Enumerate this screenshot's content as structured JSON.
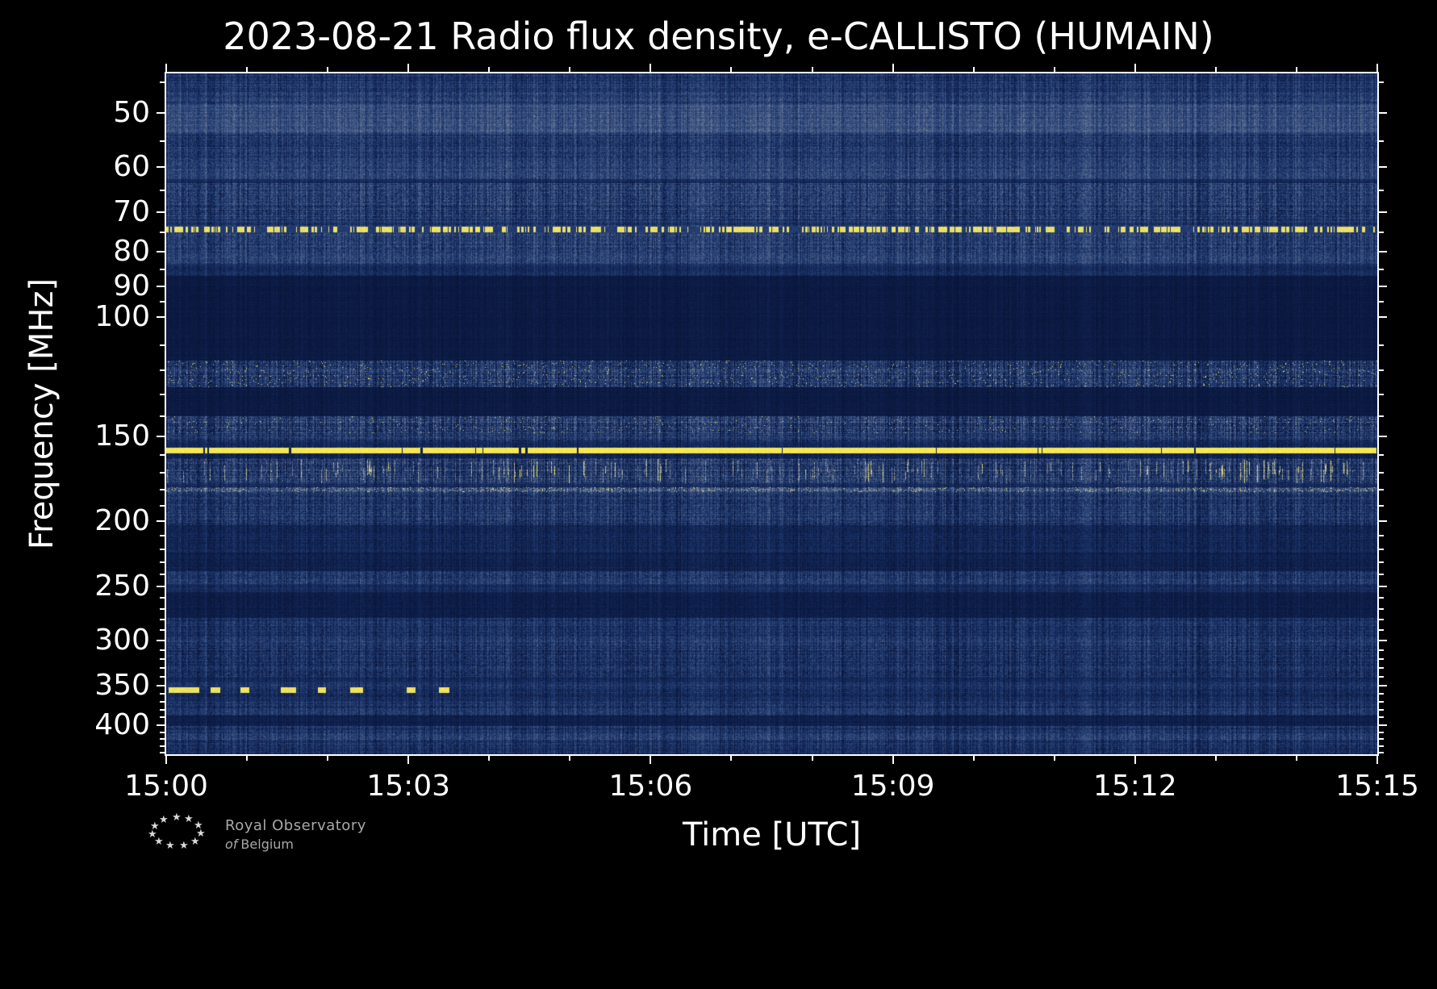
{
  "logo": {
    "star": "★",
    "line1": "Royal Observatory",
    "line2_of": "of",
    "line2_rest": "Belgium"
  },
  "chart_data": {
    "type": "heatmap",
    "title": "2023-08-21 Radio flux density, e-CALLISTO (HUMAIN)",
    "xlabel": "Time [UTC]",
    "ylabel": "Frequency [MHz]",
    "x_range_minutes": [
      0,
      15
    ],
    "x_ticks": [
      {
        "label": "15:00",
        "minute": 0
      },
      {
        "label": "15:03",
        "minute": 3
      },
      {
        "label": "15:06",
        "minute": 6
      },
      {
        "label": "15:09",
        "minute": 9
      },
      {
        "label": "15:12",
        "minute": 12
      },
      {
        "label": "15:15",
        "minute": 15
      }
    ],
    "x_minor_tick_minutes": [
      1,
      2,
      4,
      5,
      7,
      8,
      10,
      11,
      13,
      14
    ],
    "freq_range_mhz": [
      43.7,
      442
    ],
    "freq_scale": "log",
    "y_ticks_mhz": [
      50,
      60,
      70,
      80,
      90,
      100,
      150,
      200,
      250,
      300,
      350,
      400
    ],
    "y_minor_ticks_mhz": [
      45,
      55,
      65,
      75,
      85,
      95,
      110,
      120,
      130,
      140,
      160,
      170,
      180,
      190,
      210,
      220,
      230,
      240,
      260,
      270,
      280,
      290,
      310,
      320,
      330,
      340,
      360,
      370,
      380,
      390,
      410,
      420,
      430,
      440
    ],
    "colormap_stops": [
      [
        0.0,
        [
          6,
          16,
          45
        ]
      ],
      [
        0.12,
        [
          13,
          29,
          72
        ]
      ],
      [
        0.3,
        [
          32,
          58,
          112
        ]
      ],
      [
        0.5,
        [
          80,
          100,
          140
        ]
      ],
      [
        0.68,
        [
          152,
          158,
          162
        ]
      ],
      [
        0.82,
        [
          216,
          206,
          138
        ]
      ],
      [
        1.0,
        [
          255,
          240,
          70
        ]
      ]
    ],
    "bands": [
      {
        "f": [
          43.7,
          46.5
        ],
        "base": 0.27,
        "noise": 0.1
      },
      {
        "f": [
          46.5,
          48.5
        ],
        "base": 0.32,
        "noise": 0.11
      },
      {
        "f": [
          48.5,
          53.5
        ],
        "base": 0.4,
        "noise": 0.1
      },
      {
        "f": [
          53.5,
          59.5
        ],
        "base": 0.29,
        "noise": 0.11
      },
      {
        "f": [
          59.5,
          62.5
        ],
        "base": 0.35,
        "noise": 0.11
      },
      {
        "f": [
          62.5,
          63.5
        ],
        "base": 0.2,
        "noise": 0.06
      },
      {
        "f": [
          63.5,
          71.5
        ],
        "base": 0.3,
        "noise": 0.13
      },
      {
        "f": [
          71.5,
          73.3
        ],
        "base": 0.26,
        "noise": 0.09
      },
      {
        "f": [
          73.3,
          75.2
        ],
        "base": 0.3,
        "noise": 0.1
      },
      {
        "f": [
          75.2,
          80.0
        ],
        "base": 0.3,
        "noise": 0.12
      },
      {
        "f": [
          80.0,
          83.5
        ],
        "base": 0.33,
        "noise": 0.11
      },
      {
        "f": [
          83.5,
          87.0
        ],
        "base": 0.22,
        "noise": 0.07
      },
      {
        "f": [
          87.0,
          116.0
        ],
        "base": 0.1,
        "noise": 0.03
      },
      {
        "f": [
          116.0,
          127.0
        ],
        "base": 0.29,
        "noise": 0.15,
        "speckle": 0.02
      },
      {
        "f": [
          127.0,
          140.0
        ],
        "base": 0.1,
        "noise": 0.03
      },
      {
        "f": [
          140.0,
          148.5
        ],
        "base": 0.31,
        "noise": 0.16,
        "speckle": 0.012
      },
      {
        "f": [
          148.5,
          152.5
        ],
        "base": 0.27,
        "noise": 0.12
      },
      {
        "f": [
          152.5,
          155.5
        ],
        "base": 0.19,
        "noise": 0.07
      },
      {
        "f": [
          155.5,
          159.0
        ],
        "base": 0.28,
        "noise": 0.1
      },
      {
        "f": [
          159.0,
          161.5
        ],
        "base": 0.16,
        "noise": 0.06
      },
      {
        "f": [
          161.5,
          176.0
        ],
        "base": 0.3,
        "noise": 0.15
      },
      {
        "f": [
          176.0,
          178.5
        ],
        "base": 0.21,
        "noise": 0.08
      },
      {
        "f": [
          178.5,
          181.5
        ],
        "base": 0.38,
        "noise": 0.16,
        "speckle": 0.07
      },
      {
        "f": [
          181.5,
          203.0
        ],
        "base": 0.27,
        "noise": 0.12
      },
      {
        "f": [
          203.0,
          223.0
        ],
        "base": 0.18,
        "noise": 0.07
      },
      {
        "f": [
          223.0,
          237.0
        ],
        "base": 0.14,
        "noise": 0.05
      },
      {
        "f": [
          237.0,
          248.0
        ],
        "base": 0.29,
        "noise": 0.11
      },
      {
        "f": [
          248.0,
          255.0
        ],
        "base": 0.21,
        "noise": 0.07
      },
      {
        "f": [
          255.0,
          278.0
        ],
        "base": 0.12,
        "noise": 0.04
      },
      {
        "f": [
          278.0,
          298.0
        ],
        "base": 0.24,
        "noise": 0.1
      },
      {
        "f": [
          298.0,
          310.0
        ],
        "base": 0.28,
        "noise": 0.11
      },
      {
        "f": [
          310.0,
          340.0
        ],
        "base": 0.24,
        "noise": 0.11
      },
      {
        "f": [
          340.0,
          346.0
        ],
        "base": 0.2,
        "noise": 0.07
      },
      {
        "f": [
          346.0,
          361.0
        ],
        "base": 0.24,
        "noise": 0.09
      },
      {
        "f": [
          361.0,
          370.0
        ],
        "base": 0.21,
        "noise": 0.08
      },
      {
        "f": [
          370.0,
          388.0
        ],
        "base": 0.26,
        "noise": 0.1
      },
      {
        "f": [
          388.0,
          402.0
        ],
        "base": 0.13,
        "noise": 0.04
      },
      {
        "f": [
          402.0,
          412.0
        ],
        "base": 0.26,
        "noise": 0.1
      },
      {
        "f": [
          412.0,
          422.0
        ],
        "base": 0.3,
        "noise": 0.11
      },
      {
        "f": [
          422.0,
          442.0
        ],
        "base": 0.24,
        "noise": 0.1
      }
    ],
    "features": {
      "dashed_line": {
        "f": [
          73.5,
          74.9
        ],
        "duty": 0.55,
        "switch_prob": 0.22
      },
      "solid_line": {
        "f": [
          155.8,
          158.8
        ],
        "gap_prob": 0.015
      },
      "streak_band": {
        "f": [
          161.5,
          176.0
        ],
        "density": 0.2
      },
      "blob_band": {
        "f": [
          352.0,
          358.5
        ],
        "segments_min": [
          [
            0.03,
            0.4
          ],
          [
            0.55,
            0.66
          ],
          [
            0.92,
            1.02
          ],
          [
            1.42,
            1.6
          ],
          [
            1.88,
            1.97
          ],
          [
            2.28,
            2.43
          ],
          [
            2.98,
            3.08
          ],
          [
            3.38,
            3.5
          ]
        ]
      }
    },
    "notable_features": [
      {
        "description": "Continuous bright yellow emission line, full 15-minute duration",
        "freq_mhz": 157
      },
      {
        "description": "Intermittent dashed yellow interference line",
        "freq_mhz": 74
      },
      {
        "description": "Dense bright vertical burst striations",
        "freq_mhz_range": [
          162,
          176
        ]
      },
      {
        "description": "Speckled bright interference band",
        "freq_mhz_range": [
          116,
          127
        ]
      },
      {
        "description": "Speckled bright line",
        "freq_mhz": 180
      },
      {
        "description": "Short bright bursts only between 15:00 and about 15:03.5",
        "freq_mhz": 355
      },
      {
        "description": "Quiet dark band",
        "freq_mhz_range": [
          87,
          116
        ]
      },
      {
        "description": "Quiet dark band",
        "freq_mhz_range": [
          255,
          278
        ]
      }
    ]
  }
}
